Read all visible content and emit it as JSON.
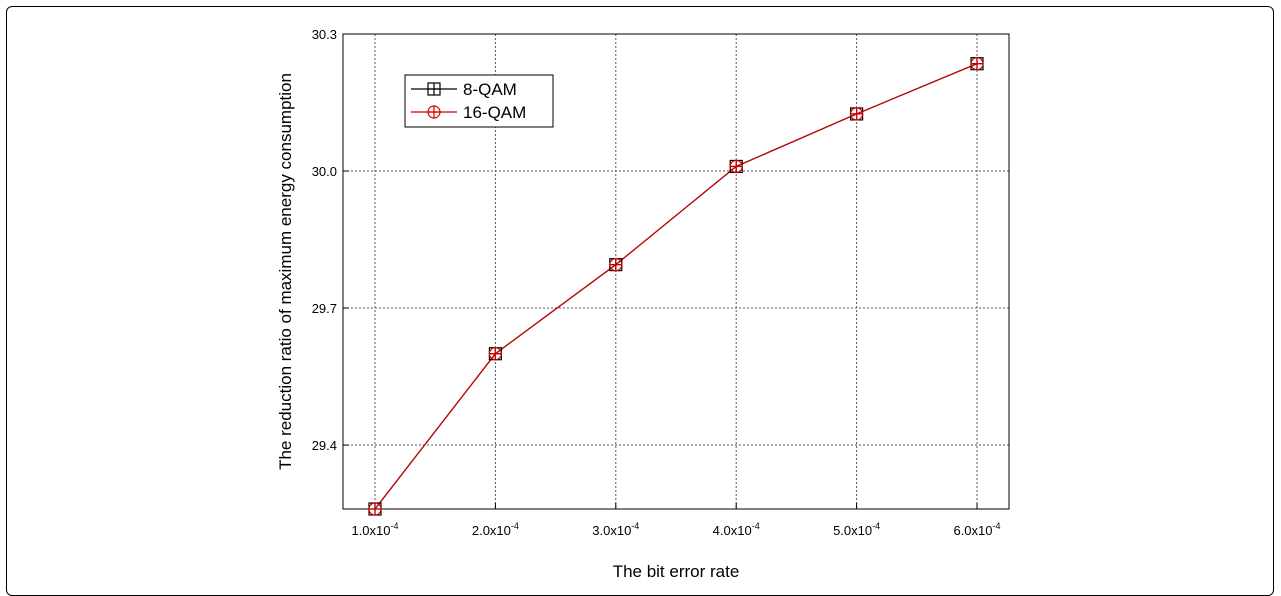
{
  "chart_data": {
    "type": "line",
    "xlabel": "The bit error rate",
    "ylabel": "The reduction ratio of maximum energy consumption",
    "x": [
      0.0001,
      0.0002,
      0.0003,
      0.0004,
      0.0005,
      0.0006
    ],
    "x_tick_labels": [
      {
        "mant": "1.0x10",
        "exp": "-4"
      },
      {
        "mant": "2.0x10",
        "exp": "-4"
      },
      {
        "mant": "3.0x10",
        "exp": "-4"
      },
      {
        "mant": "4.0x10",
        "exp": "-4"
      },
      {
        "mant": "5.0x10",
        "exp": "-4"
      },
      {
        "mant": "6.0x10",
        "exp": "-4"
      }
    ],
    "xlim": [
      0.0001,
      0.0006
    ],
    "ylim": [
      29.26,
      30.3
    ],
    "y_ticks": [
      29.4,
      29.7,
      30.0,
      30.3
    ],
    "y_tick_labels": [
      "29.4",
      "29.7",
      "30.0",
      "30.3"
    ],
    "grid": true,
    "legend_position": "top-left",
    "series": [
      {
        "name": "8-QAM",
        "values": [
          29.26,
          29.6,
          29.795,
          30.01,
          30.125,
          30.235
        ],
        "color": "#000000",
        "marker": "square-cross"
      },
      {
        "name": "16-QAM",
        "values": [
          29.26,
          29.6,
          29.795,
          30.01,
          30.125,
          30.235
        ],
        "color": "#cc0000",
        "marker": "circle-cross"
      }
    ]
  }
}
